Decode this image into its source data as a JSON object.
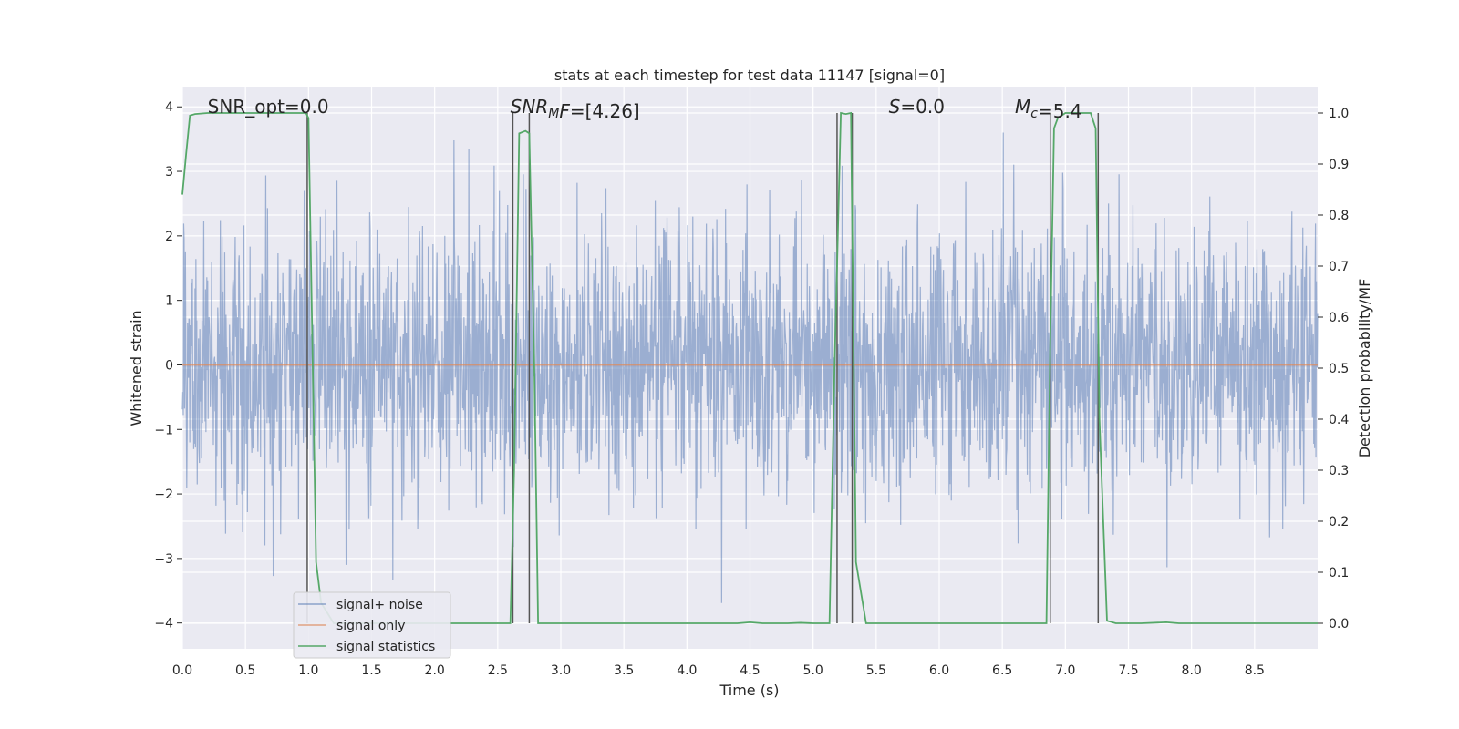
{
  "chart_data": {
    "type": "line",
    "title": "stats at each timestep for test data 11147 [signal=0]",
    "xlabel": "Time (s)",
    "ylabel_left": "Whitened strain",
    "ylabel_right": "Detection probability/MF",
    "xlim": [
      0.0,
      9.0
    ],
    "ylim_left": [
      -4.4,
      4.3
    ],
    "ylim_right": [
      -0.05,
      1.05
    ],
    "xticks": [
      "0.0",
      "0.5",
      "1.0",
      "1.5",
      "2.0",
      "2.5",
      "3.0",
      "3.5",
      "4.0",
      "4.5",
      "5.0",
      "5.5",
      "6.0",
      "6.5",
      "7.0",
      "7.5",
      "8.0",
      "8.5"
    ],
    "xtick_values": [
      0.0,
      0.5,
      1.0,
      1.5,
      2.0,
      2.5,
      3.0,
      3.5,
      4.0,
      4.5,
      5.0,
      5.5,
      6.0,
      6.5,
      7.0,
      7.5,
      8.0,
      8.5
    ],
    "yticks_left": [
      "−4",
      "−3",
      "−2",
      "−1",
      "0",
      "1",
      "2",
      "3",
      "4"
    ],
    "ytick_values_left": [
      -4,
      -3,
      -2,
      -1,
      0,
      1,
      2,
      3,
      4
    ],
    "yticks_right": [
      "0.0",
      "0.1",
      "0.2",
      "0.3",
      "0.4",
      "0.5",
      "0.6",
      "0.7",
      "0.8",
      "0.9",
      "1.0"
    ],
    "ytick_values_right": [
      0.0,
      0.1,
      0.2,
      0.3,
      0.4,
      0.5,
      0.6,
      0.7,
      0.8,
      0.9,
      1.0
    ],
    "grid": true,
    "legend_position": "lower-left",
    "annotations": [
      {
        "parts": [
          {
            "t": "SNR_opt=0.0",
            "i": false
          }
        ],
        "x": 0.2,
        "y": 4.0
      },
      {
        "parts": [
          {
            "t": "SNR",
            "i": true
          },
          {
            "t": "M",
            "i": true,
            "sub": true
          },
          {
            "t": "F",
            "i": true
          },
          {
            "t": "=[4.26]",
            "i": false
          }
        ],
        "x": 2.6,
        "y": 4.0
      },
      {
        "parts": [
          {
            "t": "S",
            "i": true
          },
          {
            "t": "=0.0",
            "i": false
          }
        ],
        "x": 5.6,
        "y": 4.0
      },
      {
        "parts": [
          {
            "t": "M",
            "i": true
          },
          {
            "t": "c",
            "i": true,
            "sub": true
          },
          {
            "t": "=5.4",
            "i": false
          }
        ],
        "x": 6.6,
        "y": 4.0
      }
    ],
    "series": [
      {
        "name": "signal+ noise",
        "axis": "left",
        "color": "#4c72b0",
        "kind": "noise",
        "envelope": 3.0
      },
      {
        "name": "signal only",
        "axis": "left",
        "color": "#dd8452",
        "x": [
          0.0,
          9.0
        ],
        "y": [
          0.0,
          0.0
        ]
      },
      {
        "name": "signal statistics",
        "axis": "right",
        "color": "#55a868",
        "x": [
          0.0,
          0.03,
          0.06,
          0.1,
          0.2,
          0.6,
          0.98,
          1.0,
          1.02,
          1.06,
          1.1,
          1.2,
          2.6,
          2.63,
          2.67,
          2.72,
          2.75,
          2.79,
          2.82,
          4.4,
          4.5,
          4.6,
          4.8,
          4.9,
          5.0,
          5.13,
          5.17,
          5.22,
          5.26,
          5.3,
          5.34,
          5.42,
          5.5,
          6.85,
          6.88,
          6.91,
          6.94,
          7.0,
          7.2,
          7.24,
          7.27,
          7.33,
          7.4,
          7.6,
          7.8,
          7.9,
          9.0
        ],
        "y": [
          0.84,
          0.92,
          0.995,
          0.998,
          1.0,
          1.0,
          1.0,
          0.99,
          0.7,
          0.12,
          0.04,
          0.0,
          0.0,
          0.3,
          0.96,
          0.965,
          0.96,
          0.5,
          0.0,
          0.0,
          0.002,
          0.0,
          0.0,
          0.001,
          0.0,
          0.0,
          0.5,
          1.0,
          0.998,
          1.0,
          0.12,
          0.0,
          0.0,
          0.0,
          0.55,
          0.97,
          0.99,
          1.0,
          1.0,
          0.97,
          0.4,
          0.005,
          0.0,
          0.0,
          0.002,
          0.0,
          0.0
        ]
      }
    ],
    "vlines": [
      0.99,
      2.62,
      2.75,
      5.19,
      5.31,
      6.88,
      7.26
    ]
  }
}
